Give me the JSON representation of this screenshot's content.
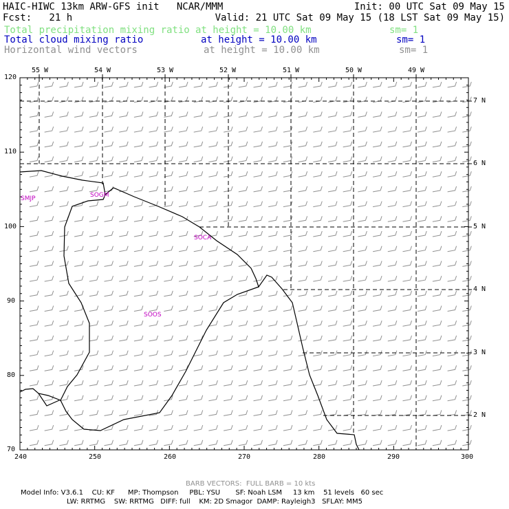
{
  "header": {
    "line1_left": "HAIC-HIWC 13km ARW-GFS init   NCAR/MMM",
    "line1_right": "Init: 00 UTC Sat 09 May 15",
    "line2_left": "Fcst:   21 h",
    "line2_right": "Valid: 21 UTC Sat 09 May 15 (18 LST Sat 09 May 15)"
  },
  "legend": [
    {
      "field": "Total precipitation mixing ratio",
      "level": "at height = 10.00 km",
      "smooth": "sm= 1",
      "color": "#80e080"
    },
    {
      "field": "Total cloud mixing ratio",
      "level": "at height = 10.00 km",
      "smooth": "sm= 1",
      "color": "#0000c0"
    },
    {
      "field": "Horizontal wind vectors",
      "level": "at height = 10.00 km",
      "smooth": "sm= 1",
      "color": "#909090"
    }
  ],
  "axes": {
    "bottom": [
      "240",
      "250",
      "260",
      "270",
      "280",
      "290",
      "300"
    ],
    "left": [
      "120",
      "110",
      "100",
      "90",
      "80",
      "70"
    ],
    "top_lon": [
      "55 W",
      "54 W",
      "53 W",
      "52 W",
      "51 W",
      "50 W",
      "49 W"
    ],
    "right_lat": [
      "7 N",
      "6 N",
      "5 N",
      "4 N",
      "3 N",
      "2 N"
    ]
  },
  "stations": [
    {
      "id": "SMJP"
    },
    {
      "id": "SOGM"
    },
    {
      "id": "SOCA"
    },
    {
      "id": "SOOS"
    }
  ],
  "footer": {
    "barb_note": "BARB VECTORS:  FULL BARB = 10 kts",
    "model_line1": "Model Info: V3.6.1    CU: KF      MP: Thompson     PBL: YSU       SF: Noah LSM     13 km    51 levels   60 sec",
    "model_line2": "LW: RRTMG    SW: RRTMG   DIFF: full    KM: 2D Smagor  DAMP: Rayleigh3   SFLAY: MM5"
  },
  "map_colors": {
    "frame": "#000000",
    "barbs": "#909090",
    "grid": "#000000",
    "coast": "#000000"
  }
}
